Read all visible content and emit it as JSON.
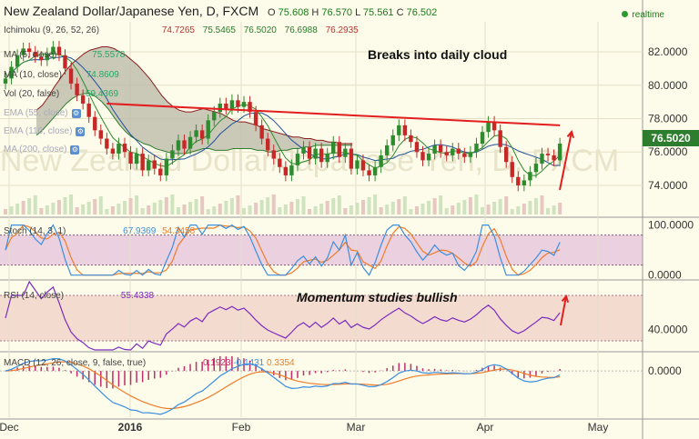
{
  "header": {
    "title": "New Zealand Dollar/Japanese Yen, D, FXCM",
    "open_label": "O",
    "open": "75.608",
    "high_label": "H",
    "high": "76.570",
    "low_label": "L",
    "low": "75.561",
    "close_label": "C",
    "close": "76.502",
    "realtime_label": "realtime"
  },
  "indicators": {
    "ichimoku": {
      "label": "Ichimoku (9, 26, 52, 26)",
      "values": [
        "74.7265",
        "75.5465",
        "76.5020",
        "76.6988",
        "76.2935"
      ]
    },
    "ma5": {
      "label": "MA (5, close)",
      "values": [
        "75.5578"
      ]
    },
    "ma10": {
      "label": "MA (10, close)",
      "values": [
        "74.8609"
      ]
    },
    "vol": {
      "label": "Vol (20, false)",
      "values": [
        "59.4369"
      ]
    },
    "ema55": {
      "label": "EMA (55, close)"
    },
    "ema110": {
      "label": "EMA (110, close)"
    },
    "ma200": {
      "label": "MA (200, close)"
    },
    "stoch": {
      "label": "Stoch (14, 3, 1)",
      "values": [
        "67.9369",
        "54.3458"
      ]
    },
    "rsi": {
      "label": "RSI (14, close)",
      "values": [
        "55.4338"
      ]
    },
    "macd": {
      "label": "MACD (12, 26, close, 9, false, true)",
      "values": [
        "0.1923",
        "-0.1431",
        "0.3354"
      ]
    }
  },
  "annotations": {
    "breakout": "Breaks into daily cloud",
    "momentum": "Momentum studies bullish"
  },
  "price_label": "76.5020",
  "colors": {
    "up": "#2e8b2e",
    "down": "#c62828",
    "cloud": "#b8b8a6",
    "trendline": "#e21e1e",
    "stoch_bg": "#e6c6dc",
    "rsi_bg": "#f2d8cc",
    "fast": "#3b8fe0",
    "slow": "#ef7d2a",
    "rsi_line": "#7b2cbf",
    "macd_hist": "#c02f6a"
  },
  "chart_data": {
    "type": "candlestick",
    "x_labels": [
      "Dec",
      "2016",
      "Feb",
      "Mar",
      "Apr",
      "May"
    ],
    "price_axis": {
      "ticks": [
        "82.0000",
        "80.0000",
        "78.0000",
        "76.0000",
        "74.0000"
      ],
      "values": [
        82,
        80,
        78,
        76,
        74
      ],
      "ylim": [
        72.2,
        83.8
      ]
    },
    "price_close": [
      80.4,
      81.1,
      81.8,
      82.2,
      82.0,
      81.7,
      81.5,
      81.9,
      82.3,
      81.8,
      81.0,
      80.1,
      79.4,
      78.9,
      78.1,
      77.3,
      76.8,
      76.2,
      75.9,
      76.5,
      76.0,
      75.3,
      75.9,
      74.9,
      75.5,
      75.0,
      74.6,
      75.6,
      76.1,
      76.7,
      76.2,
      76.9,
      77.3,
      76.8,
      77.9,
      78.4,
      78.9,
      78.6,
      79.1,
      78.7,
      79.0,
      78.4,
      77.6,
      76.8,
      76.1,
      75.6,
      75.1,
      74.6,
      75.2,
      75.9,
      76.3,
      75.6,
      76.2,
      75.4,
      75.9,
      76.6,
      75.7,
      76.2,
      75.0,
      75.5,
      74.9,
      74.6,
      75.1,
      75.8,
      76.4,
      77.0,
      77.6,
      77.0,
      76.6,
      76.0,
      75.5,
      75.9,
      76.4,
      76.0,
      75.8,
      76.2,
      75.9,
      75.7,
      76.0,
      76.5,
      77.2,
      77.8,
      77.3,
      76.3,
      75.4,
      74.5,
      74.0,
      74.3,
      74.8,
      75.3,
      75.9,
      75.8,
      75.5,
      76.5
    ],
    "cloud_upper": [
      78.5,
      78.8,
      79.3,
      79.9,
      80.4,
      80.9,
      81.3,
      81.6,
      81.9,
      82.1,
      82.2,
      82.3,
      82.3,
      82.2,
      82.0,
      81.8,
      81.5,
      81.2,
      80.8,
      80.4,
      79.9,
      79.4,
      79.0,
      78.7,
      78.5,
      78.4,
      78.4,
      78.5,
      78.6,
      78.5,
      78.4,
      78.3,
      78.1,
      77.9,
      77.8,
      77.8,
      77.7,
      77.6,
      77.4,
      77.3,
      77.2,
      77.1,
      77.0,
      76.9,
      76.9,
      76.8,
      76.8,
      76.7,
      76.7,
      76.6,
      76.6,
      76.5,
      76.5,
      76.5
    ],
    "cloud_lower": [
      77.0,
      77.3,
      77.7,
      78.1,
      78.5,
      78.9,
      79.2,
      79.4,
      79.5,
      79.5,
      79.3,
      79.0,
      78.6,
      78.1,
      77.6,
      77.2,
      76.9,
      76.7,
      76.5,
      76.4,
      76.2,
      76.1,
      76.0,
      75.9,
      75.9,
      75.9,
      76.0,
      76.1,
      76.2,
      76.2,
      76.1,
      76.1,
      76.1,
      76.2,
      76.2,
      76.2,
      76.2,
      76.1,
      76.1,
      76.0,
      76.0,
      76.1,
      76.1,
      76.2,
      76.2,
      76.3,
      76.3,
      76.4,
      76.4,
      76.4,
      76.4,
      76.4,
      76.4,
      76.4
    ],
    "trendline": [
      [
        78.9,
        17
      ],
      [
        77.6,
        93
      ]
    ],
    "stochastic": {
      "ylim": [
        -6,
        112
      ],
      "ticks": [
        "100.0000",
        "0.0000"
      ],
      "tick_values": [
        100,
        0
      ],
      "k_last": 67.9369,
      "d_last": 54.3458
    },
    "rsi": {
      "ylim": [
        22,
        82
      ],
      "ticks": [
        "40.0000"
      ],
      "tick_values": [
        40
      ],
      "last": 55.4338
    },
    "macd": {
      "ylim": [
        -1.6,
        0.6
      ],
      "ticks": [
        "0.0000"
      ],
      "tick_values": [
        0
      ],
      "macd_last": 0.1923,
      "signal_last": -0.1431,
      "hist_last": 0.3354
    }
  }
}
